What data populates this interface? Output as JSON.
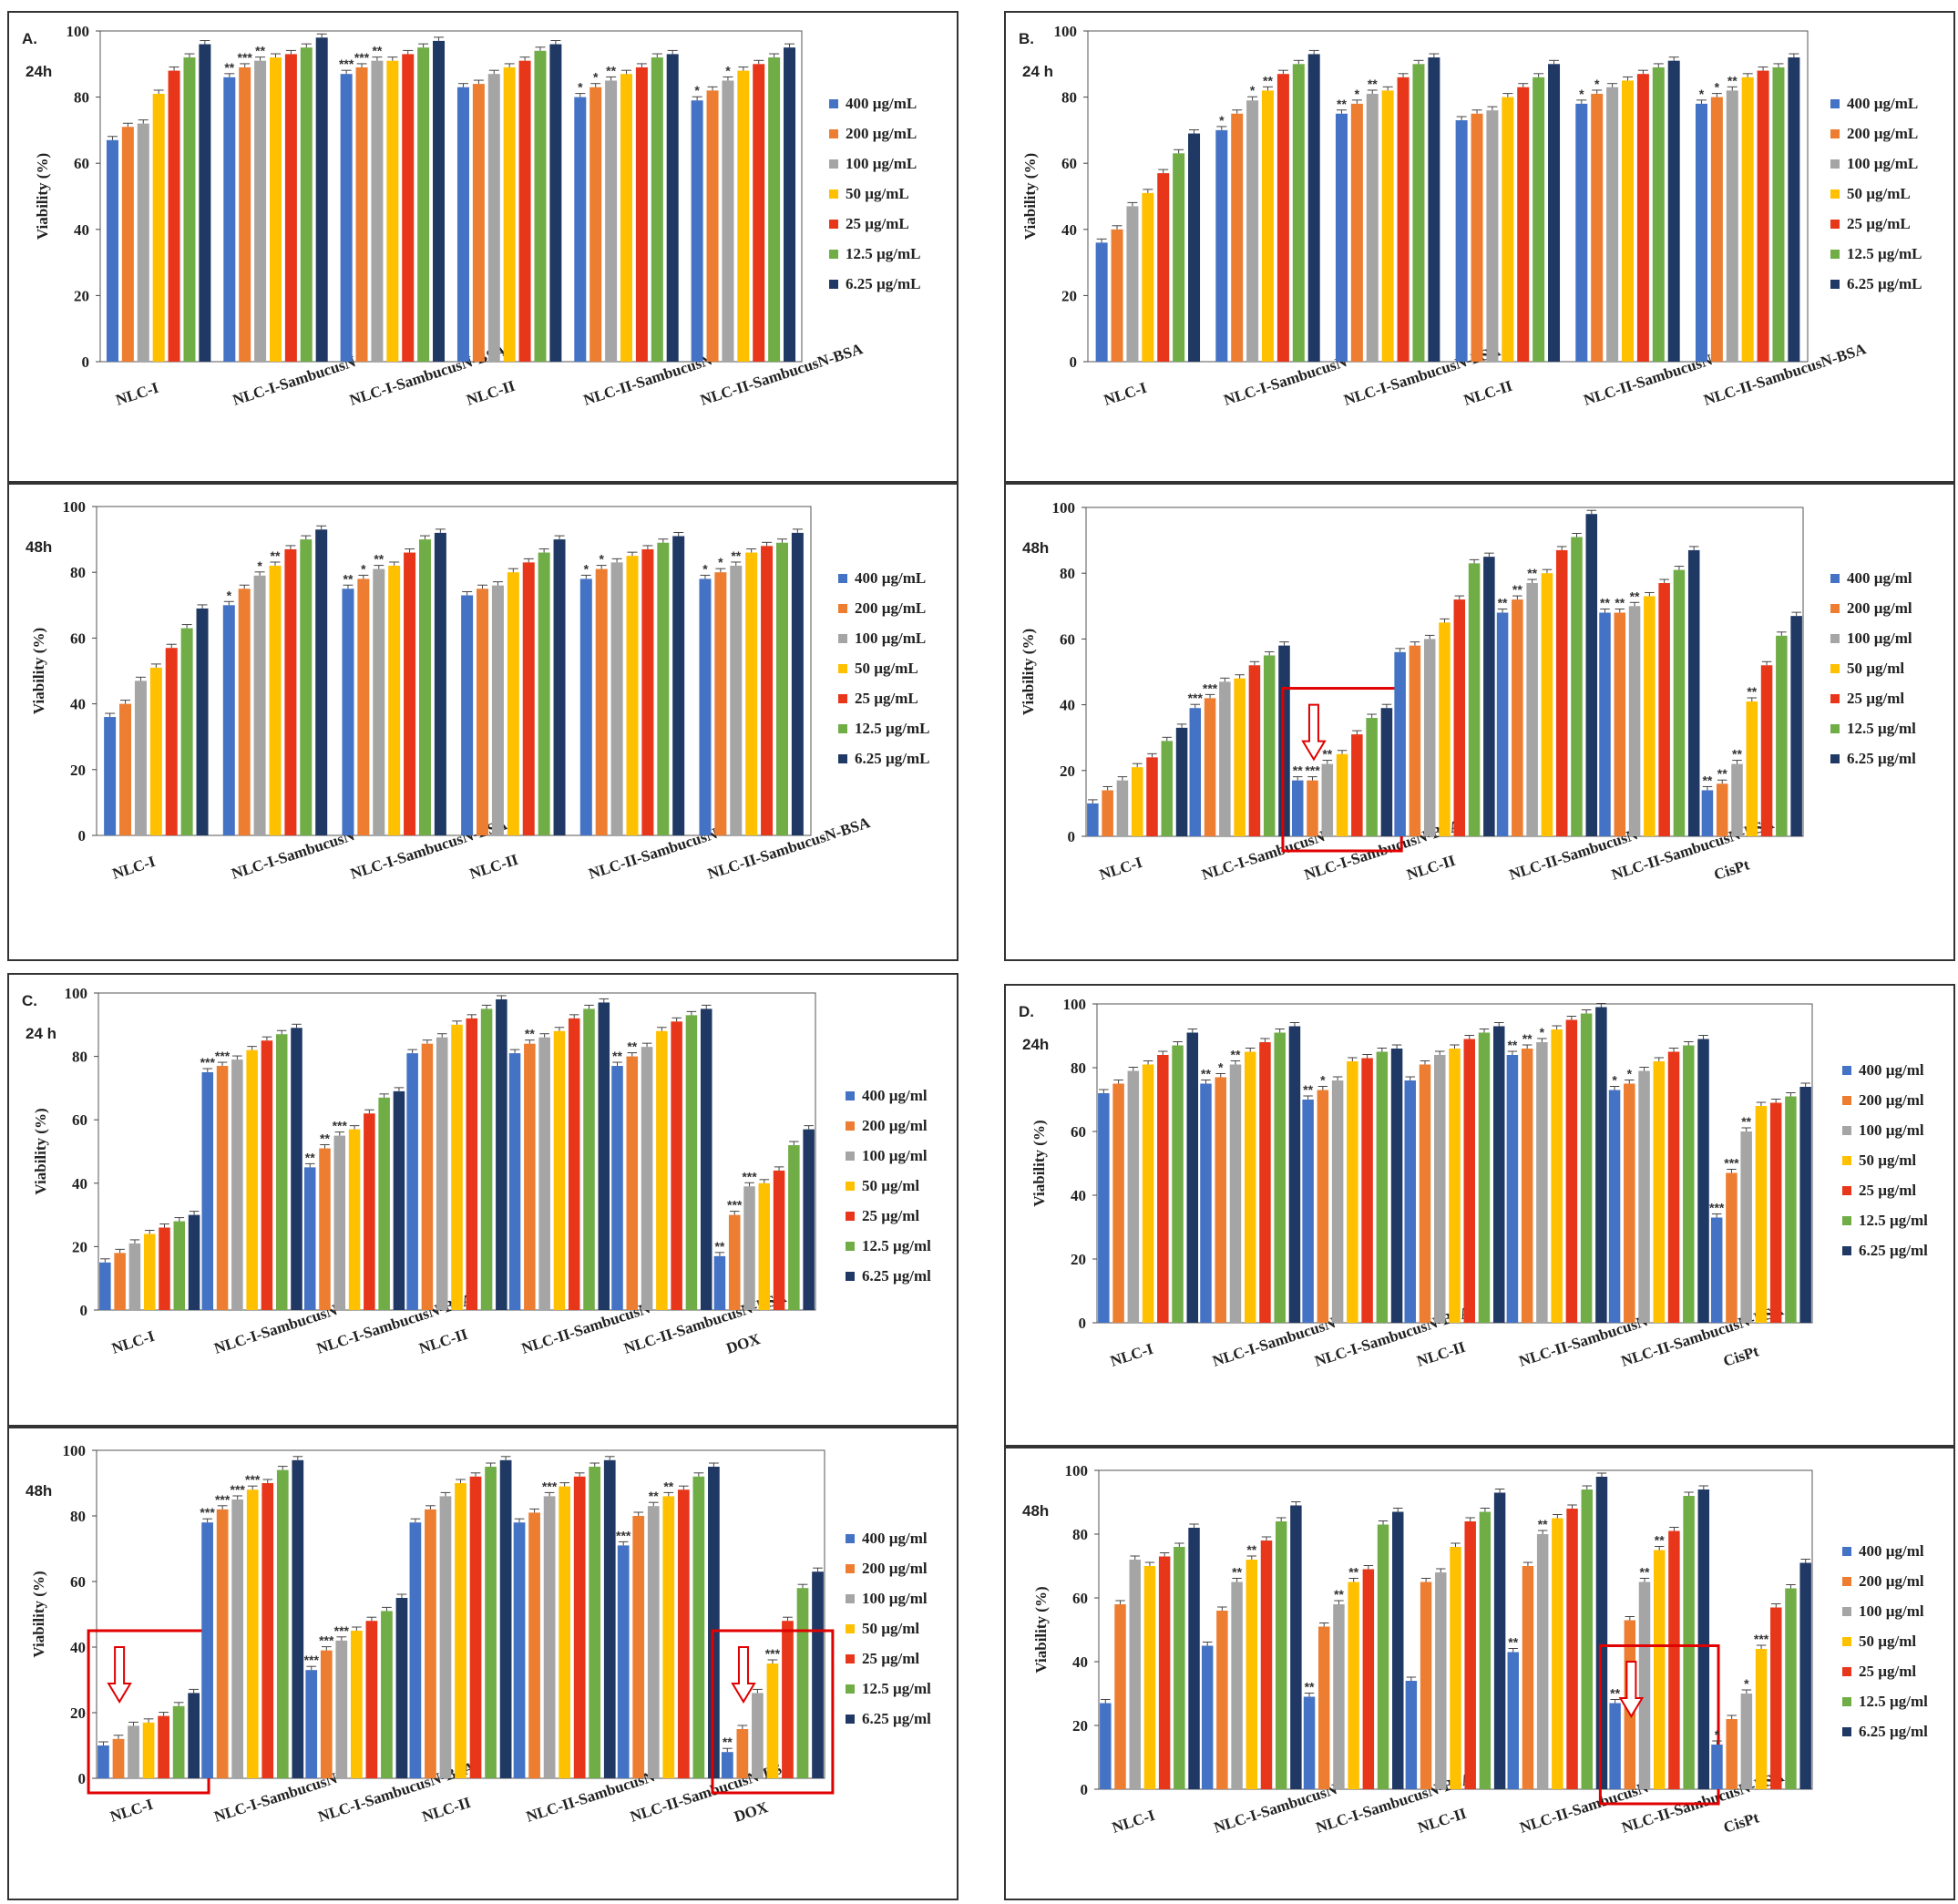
{
  "colors": [
    "#4472c4",
    "#ed7d31",
    "#a5a5a5",
    "#ffc000",
    "#e8361a",
    "#70ad47",
    "#1f3864"
  ],
  "common": {
    "ylabel": "Viability (%)",
    "yticks": [
      "0",
      "20",
      "40",
      "60",
      "80",
      "100"
    ]
  },
  "chart_data": [
    {
      "id": "A-24h",
      "type": "bar",
      "panel_label": "A.",
      "time_label": "24h",
      "categories": [
        "NLC-I",
        "NLC-I-SambucusN",
        "NLC-I-SambucusN-BSA",
        "NLC-II",
        "NLC-II-SambucusN",
        "NLC-II-SambucusN-BSA"
      ],
      "legend": [
        "400 µg/mL",
        "200 µg/mL",
        "100 µg/mL",
        "50 µg/mL",
        "25 µg/mL",
        "12.5 µg/mL",
        "6.25 µg/mL"
      ],
      "values": [
        [
          67,
          71,
          72,
          81,
          88,
          92,
          96
        ],
        [
          86,
          89,
          91,
          92,
          93,
          95,
          98
        ],
        [
          87,
          89,
          91,
          91,
          93,
          95,
          97
        ],
        [
          83,
          84,
          87,
          89,
          91,
          94,
          96
        ],
        [
          80,
          83,
          85,
          87,
          89,
          92,
          93
        ],
        [
          79,
          82,
          85,
          88,
          90,
          92,
          95
        ]
      ],
      "stars": [
        [
          "",
          "",
          "",
          "",
          "",
          "",
          ""
        ],
        [
          "**",
          "***",
          "**",
          "",
          "",
          "",
          ""
        ],
        [
          "***",
          "***",
          "**",
          "",
          "",
          "",
          ""
        ],
        [
          "",
          "",
          "",
          "",
          "",
          "",
          ""
        ],
        [
          "*",
          "*",
          "**",
          "",
          "",
          "",
          ""
        ],
        [
          "*",
          "",
          "*",
          "",
          "",
          "",
          ""
        ]
      ],
      "ylabel": "Viability (%)",
      "ylim": [
        0,
        100
      ]
    },
    {
      "id": "B-24h",
      "type": "bar",
      "panel_label": "B.",
      "time_label": "24 h",
      "categories": [
        "NLC-I",
        "NLC-I-SambucusN",
        "NLC-I-SambucusN-BSA",
        "NLC-II",
        "NLC-II-SambucusN",
        "NLC-II-SambucusN-BSA"
      ],
      "legend": [
        "400 µg/mL",
        "200 µg/mL",
        "100 µg/mL",
        "50 µg/mL",
        "25 µg/mL",
        "12.5 µg/mL",
        "6.25 µg/mL"
      ],
      "values": [
        [
          36,
          40,
          47,
          51,
          57,
          63,
          69
        ],
        [
          70,
          75,
          79,
          82,
          87,
          90,
          93
        ],
        [
          75,
          78,
          81,
          82,
          86,
          90,
          92
        ],
        [
          73,
          75,
          76,
          80,
          83,
          86,
          90
        ],
        [
          78,
          81,
          83,
          85,
          87,
          89,
          91
        ],
        [
          78,
          80,
          82,
          86,
          88,
          89,
          92
        ]
      ],
      "stars": [
        [
          "",
          "",
          "",
          "",
          "",
          "",
          ""
        ],
        [
          "*",
          "",
          "*",
          "**",
          "",
          "",
          ""
        ],
        [
          "**",
          "*",
          "**",
          "",
          "",
          "",
          ""
        ],
        [
          "",
          "",
          "",
          "",
          "",
          "",
          ""
        ],
        [
          "*",
          "*",
          "",
          "",
          "",
          "",
          ""
        ],
        [
          "*",
          "*",
          "**",
          "",
          "",
          "",
          ""
        ]
      ],
      "ylabel": "Viability (%)",
      "ylim": [
        0,
        100
      ]
    },
    {
      "id": "A-48h",
      "type": "bar",
      "panel_label": "",
      "time_label": "48h",
      "categories": [
        "NLC-I",
        "NLC-I-SambucusN",
        "NLC-I-SambucusN-BSA",
        "NLC-II",
        "NLC-II-SambucusN",
        "NLC-II-SambucusN-BSA"
      ],
      "legend": [
        "400 µg/mL",
        "200 µg/mL",
        "100 µg/mL",
        "50 µg/mL",
        "25 µg/mL",
        "12.5 µg/mL",
        "6.25 µg/mL"
      ],
      "values": [
        [
          36,
          40,
          47,
          51,
          57,
          63,
          69
        ],
        [
          70,
          75,
          79,
          82,
          87,
          90,
          93
        ],
        [
          75,
          78,
          81,
          82,
          86,
          90,
          92
        ],
        [
          73,
          75,
          76,
          80,
          83,
          86,
          90
        ],
        [
          78,
          81,
          83,
          85,
          87,
          89,
          91
        ],
        [
          78,
          80,
          82,
          86,
          88,
          89,
          92
        ]
      ],
      "stars": [
        [
          "",
          "",
          "",
          "",
          "",
          "",
          ""
        ],
        [
          "*",
          "",
          "*",
          "**",
          "",
          "",
          ""
        ],
        [
          "**",
          "*",
          "**",
          "",
          "",
          "",
          ""
        ],
        [
          "",
          "",
          "",
          "",
          "",
          "",
          ""
        ],
        [
          "*",
          "*",
          "",
          "",
          "",
          "",
          ""
        ],
        [
          "*",
          "*",
          "**",
          "",
          "",
          "",
          ""
        ]
      ],
      "ylabel": "Viability (%)",
      "ylim": [
        0,
        100
      ]
    },
    {
      "id": "B-48h",
      "type": "bar",
      "panel_label": "",
      "time_label": "48h",
      "categories": [
        "NLC-I",
        "NLC-I-SambucusN",
        "NLC-I-SambucusN-BSA",
        "NLC-II",
        "NLC-II-SambucusN",
        "NLC-II-SambucusN-BSA",
        "CisPt"
      ],
      "legend": [
        "400 µg/ml",
        "200 µg/ml",
        "100 µg/ml",
        "50 µg/ml",
        "25 µg/ml",
        "12.5 µg/ml",
        "6.25 µg/ml"
      ],
      "values": [
        [
          10,
          14,
          17,
          21,
          24,
          29,
          33
        ],
        [
          39,
          42,
          47,
          48,
          52,
          55,
          58
        ],
        [
          17,
          17,
          22,
          25,
          31,
          36,
          39
        ],
        [
          56,
          58,
          60,
          65,
          72,
          83,
          85
        ],
        [
          68,
          72,
          77,
          80,
          87,
          91,
          98
        ],
        [
          68,
          68,
          70,
          73,
          77,
          81,
          87
        ],
        [
          14,
          16,
          22,
          41,
          52,
          61,
          67
        ]
      ],
      "stars": [
        [
          "",
          "",
          "",
          "",
          "",
          "",
          ""
        ],
        [
          "***",
          "***",
          "",
          "",
          "",
          "",
          ""
        ],
        [
          "**",
          "***",
          "**",
          "",
          "",
          "",
          ""
        ],
        [
          "",
          "",
          "",
          "",
          "",
          "",
          ""
        ],
        [
          "**",
          "**",
          "**",
          "",
          "",
          "",
          ""
        ],
        [
          "**",
          "**",
          "**",
          "",
          "",
          "",
          ""
        ],
        [
          "**",
          "**",
          "**",
          "**",
          "",
          "",
          ""
        ]
      ],
      "highlight": [
        2
      ],
      "ylabel": "Viability (%)",
      "ylim": [
        0,
        100
      ]
    },
    {
      "id": "C-24h",
      "type": "bar",
      "panel_label": "C.",
      "time_label": "24 h",
      "categories": [
        "NLC-I",
        "NLC-I-SambucusN",
        "NLC-I-SambucusN-BSA",
        "NLC-II",
        "NLC-II-SambucusN",
        "NLC-II-SambucusN-BSA",
        "DOX"
      ],
      "legend": [
        "400 µg/ml",
        "200 µg/ml",
        "100 µg/ml",
        "50 µg/ml",
        "25 µg/ml",
        "12.5 µg/ml",
        "6.25 µg/ml"
      ],
      "values": [
        [
          15,
          18,
          21,
          24,
          26,
          28,
          30
        ],
        [
          75,
          77,
          79,
          82,
          85,
          87,
          89
        ],
        [
          45,
          51,
          55,
          57,
          62,
          67,
          69
        ],
        [
          81,
          84,
          86,
          90,
          92,
          95,
          98
        ],
        [
          81,
          84,
          86,
          88,
          92,
          95,
          97
        ],
        [
          77,
          80,
          83,
          88,
          91,
          93,
          95
        ],
        [
          17,
          30,
          39,
          40,
          44,
          52,
          57
        ]
      ],
      "stars": [
        [
          "",
          "",
          "",
          "",
          "",
          "",
          ""
        ],
        [
          "***",
          "***",
          "",
          "",
          "",
          "",
          ""
        ],
        [
          "**",
          "**",
          "***",
          "",
          "",
          "",
          ""
        ],
        [
          "",
          "",
          "",
          "",
          "",
          "",
          ""
        ],
        [
          "",
          "**",
          "",
          "",
          "",
          "",
          ""
        ],
        [
          "**",
          "**",
          "",
          "",
          "",
          "",
          ""
        ],
        [
          "**",
          "***",
          "***",
          "",
          "",
          "",
          ""
        ]
      ],
      "ylabel": "Viability (%)",
      "ylim": [
        0,
        100
      ]
    },
    {
      "id": "D-24h",
      "type": "bar",
      "panel_label": "D.",
      "time_label": "24h",
      "categories": [
        "NLC-I",
        "NLC-I-SambucusN",
        "NLC-I-SambucusN-BSA",
        "NLC-II",
        "NLC-II-SambucusN",
        "NLC-II-SambucusN-BSA",
        "CisPt"
      ],
      "legend": [
        "400 µg/ml",
        "200 µg/ml",
        "100 µg/ml",
        "50 µg/ml",
        "25 µg/ml",
        "12.5 µg/ml",
        "6.25 µg/ml"
      ],
      "values": [
        [
          72,
          75,
          79,
          81,
          84,
          87,
          91
        ],
        [
          75,
          77,
          81,
          85,
          88,
          91,
          93
        ],
        [
          70,
          73,
          76,
          82,
          83,
          85,
          86
        ],
        [
          76,
          81,
          84,
          86,
          89,
          91,
          93
        ],
        [
          84,
          86,
          88,
          92,
          95,
          97,
          99
        ],
        [
          73,
          75,
          79,
          82,
          85,
          87,
          89
        ],
        [
          33,
          47,
          60,
          68,
          69,
          71,
          74
        ]
      ],
      "stars": [
        [
          "",
          "",
          "",
          "",
          "",
          "",
          ""
        ],
        [
          "**",
          "*",
          "**",
          "",
          "",
          "",
          ""
        ],
        [
          "**",
          "*",
          "",
          "",
          "",
          "",
          ""
        ],
        [
          "",
          "",
          "",
          "",
          "",
          "",
          ""
        ],
        [
          "**",
          "**",
          "*",
          "",
          "",
          "",
          ""
        ],
        [
          "*",
          "*",
          "",
          "",
          "",
          "",
          ""
        ],
        [
          "***",
          "***",
          "**",
          "",
          "",
          "",
          ""
        ]
      ],
      "ylabel": "Viability (%)",
      "ylim": [
        0,
        100
      ]
    },
    {
      "id": "C-48h",
      "type": "bar",
      "panel_label": "",
      "time_label": "48h",
      "categories": [
        "NLC-I",
        "NLC-I-SambucusN",
        "NLC-I-SambucusN-BSA",
        "NLC-II",
        "NLC-II-SambucusN",
        "NLC-II-SambucusN-BSA",
        "DOX"
      ],
      "legend": [
        "400 µg/ml",
        "200 µg/ml",
        "100 µg/ml",
        "50 µg/ml",
        "25 µg/ml",
        "12.5 µg/ml",
        "6.25 µg/ml"
      ],
      "values": [
        [
          10,
          12,
          16,
          17,
          19,
          22,
          26
        ],
        [
          78,
          82,
          85,
          88,
          90,
          94,
          97
        ],
        [
          33,
          39,
          42,
          45,
          48,
          51,
          55
        ],
        [
          78,
          82,
          86,
          90,
          92,
          95,
          97
        ],
        [
          78,
          81,
          86,
          89,
          92,
          95,
          97
        ],
        [
          71,
          80,
          83,
          86,
          88,
          92,
          95
        ],
        [
          8,
          15,
          26,
          35,
          48,
          58,
          63
        ]
      ],
      "stars": [
        [
          "",
          "",
          "",
          "",
          "",
          "",
          ""
        ],
        [
          "***",
          "***",
          "***",
          "***",
          "",
          "",
          ""
        ],
        [
          "***",
          "***",
          "***",
          "",
          "",
          "",
          ""
        ],
        [
          "",
          "",
          "",
          "",
          "",
          "",
          ""
        ],
        [
          "",
          "",
          "***",
          "",
          "",
          "",
          ""
        ],
        [
          "***",
          "",
          "**",
          "**",
          "",
          "",
          ""
        ],
        [
          "**",
          "",
          "",
          "***",
          "",
          "",
          ""
        ]
      ],
      "highlight": [
        0,
        6
      ],
      "ylabel": "Viability (%)",
      "ylim": [
        0,
        100
      ]
    },
    {
      "id": "D-48h",
      "type": "bar",
      "panel_label": "",
      "time_label": "48h",
      "categories": [
        "NLC-I",
        "NLC-I-SambucusN",
        "NLC-I-SambucusN-BSA",
        "NLC-II",
        "NLC-II-SambucusN",
        "NLC-II-SambucusN-BSA",
        "CisPt"
      ],
      "legend": [
        "400 µg/ml",
        "200 µg/ml",
        "100 µg/ml",
        "50 µg/ml",
        "25 µg/ml",
        "12.5 µg/ml",
        "6.25 µg/ml"
      ],
      "values": [
        [
          27,
          58,
          72,
          70,
          73,
          76,
          82
        ],
        [
          45,
          56,
          65,
          72,
          78,
          84,
          89
        ],
        [
          29,
          51,
          58,
          65,
          69,
          83,
          87
        ],
        [
          34,
          65,
          68,
          76,
          84,
          87,
          93
        ],
        [
          43,
          70,
          80,
          85,
          88,
          94,
          98
        ],
        [
          27,
          53,
          65,
          75,
          81,
          92,
          94
        ],
        [
          14,
          22,
          30,
          44,
          57,
          63,
          71
        ]
      ],
      "stars": [
        [
          "",
          "",
          "",
          "",
          "",
          "",
          ""
        ],
        [
          "",
          "",
          "**",
          "**",
          "",
          "",
          ""
        ],
        [
          "**",
          "",
          "**",
          "**",
          "",
          "",
          ""
        ],
        [
          "",
          "",
          "",
          "",
          "",
          "",
          ""
        ],
        [
          "**",
          "",
          "**",
          "",
          "",
          "",
          ""
        ],
        [
          "**",
          "",
          "**",
          "**",
          "",
          "",
          ""
        ],
        [
          "*",
          "",
          "*",
          "***",
          "",
          "",
          ""
        ]
      ],
      "highlight": [
        5
      ],
      "ylabel": "Viability (%)",
      "ylim": [
        0,
        100
      ]
    }
  ]
}
